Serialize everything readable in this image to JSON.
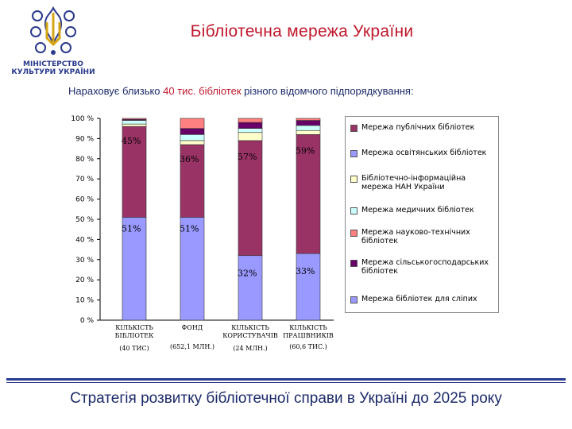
{
  "header": {
    "title": "Бібліотечна мережа України",
    "ministry_line1": "МІНІСТЕРСТВО",
    "ministry_line2": "КУЛЬТУРИ УКРАЇНИ",
    "logo_icon": "tryzub-emblem-icon"
  },
  "subtitle": {
    "before": "Нараховує близько ",
    "highlight": "40 тис. бібліотек",
    "after": " різного відомчого підпорядкування:"
  },
  "footer": {
    "text": "Стратегія розвитку бібліотечної справи в Україні до 2025 року"
  },
  "chart_data": {
    "type": "bar",
    "stacked": true,
    "ylim": [
      0,
      100
    ],
    "yticks": [
      "0 %",
      "10 %",
      "20 %",
      "30 %",
      "40 %",
      "50 %",
      "60 %",
      "70 %",
      "80 %",
      "90 %",
      "100 %"
    ],
    "grid": false,
    "legend_position": "right",
    "categories": [
      {
        "line1": "КІЛЬКІСТЬ",
        "line2": "БІБЛІОТЕК",
        "sub": "(40 ТИС)"
      },
      {
        "line1": "ФОНД",
        "line2": "",
        "sub": "(652,1 МЛН.)"
      },
      {
        "line1": "КІЛЬКІСТЬ",
        "line2": "КОРИСТУВАЧІВ",
        "sub": "(24 МЛН.)"
      },
      {
        "line1": "КІЛЬКІСТЬ",
        "line2": "ПРАЦІВНИКІВ",
        "sub": "(60,6 ТИС.)"
      }
    ],
    "series": [
      {
        "name": "Мережа бібліотек для сліпих",
        "color": "#9999ff",
        "values": [
          51,
          51,
          32,
          33
        ],
        "labels": [
          "51%",
          "51%",
          "32%",
          "33%"
        ]
      },
      {
        "name": "Мережа сільськогосподарських бібліотек",
        "color": "#660066",
        "values": [
          0.5,
          0.7,
          0.8,
          0.5
        ],
        "labels": [
          "",
          "",
          "",
          ""
        ]
      },
      {
        "name": "Мережа науково-технічних бібліотек",
        "color": "#ff8080",
        "values": [
          0.5,
          0.6,
          0.7,
          0.6
        ],
        "labels": [
          "",
          "",
          "",
          ""
        ]
      },
      {
        "name": "Мережа медичних бібліотек",
        "color": "#ccffff",
        "values": [
          0.5,
          0.5,
          0.6,
          0.7
        ],
        "labels": [
          "",
          "",
          "",
          ""
        ]
      },
      {
        "name": "Бібліотечно-інформаційна мережа НАН України",
        "color": "#ffffcc",
        "values": [
          0.5,
          0.5,
          0.6,
          0.5
        ],
        "labels": [
          "",
          "",
          "",
          ""
        ]
      },
      {
        "name": "Мережа освітянських бібліотек",
        "color": "#9999ff",
        "values": [
          0,
          0,
          0,
          0
        ],
        "labels": [
          "",
          "",
          "",
          ""
        ]
      },
      {
        "name": "Мережа публічних бібліотек",
        "color": "#993366",
        "values": [
          45,
          36,
          57,
          59
        ],
        "labels": [
          "45%",
          "36%",
          "57%",
          "59%"
        ]
      }
    ],
    "stack_detail": [
      [
        51,
        45,
        1.2,
        1.8,
        0.5,
        0.5
      ],
      [
        51,
        36,
        2,
        3,
        3,
        5
      ],
      [
        32,
        57,
        4,
        2,
        3,
        2
      ],
      [
        33,
        59,
        2,
        2.5,
        2.5,
        1
      ]
    ],
    "stack_colors": [
      "#9999ff",
      "#993366",
      "#ffffcc",
      "#ccffff",
      "#660066",
      "#ff8080"
    ],
    "legend_order": [
      {
        "name": "Мережа публічних бібліотек",
        "color": "#993366"
      },
      {
        "name": "Мережа освітянських бібліотек",
        "color": "#9999ff"
      },
      {
        "name": "Бібліотечно-інформаційна мережа НАН України",
        "color": "#ffffcc"
      },
      {
        "name": "Мережа медичних бібліотек",
        "color": "#ccffff"
      },
      {
        "name": "Мережа науково-технічних бібліотек",
        "color": "#ff8080"
      },
      {
        "name": "Мережа сільськогосподарських бібліотек",
        "color": "#660066"
      },
      {
        "name": "Мережа бібліотек для сліпих",
        "color": "#9999ff"
      }
    ]
  }
}
